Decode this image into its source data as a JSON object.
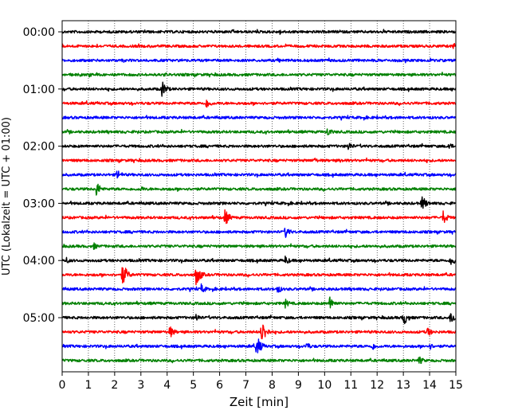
{
  "chart_data": {
    "type": "line",
    "subtype": "helicorder",
    "xlabel": "Zeit  [min]",
    "ylabel": "UTC (Lokalzeit = UTC + 01:00)",
    "xlim": [
      0,
      15
    ],
    "x_ticks": [
      "0",
      "1",
      "2",
      "3",
      "4",
      "5",
      "6",
      "7",
      "8",
      "9",
      "10",
      "11",
      "12",
      "13",
      "14",
      "15"
    ],
    "y_ticks": [
      "00:00",
      "01:00",
      "02:00",
      "03:00",
      "04:00",
      "05:00"
    ],
    "grid": "vertical dotted lines at each minute",
    "trace_interval_minutes": 15,
    "trace_colors": [
      "#000000",
      "#ff0000",
      "#0000ff",
      "#008000"
    ],
    "traces": [
      {
        "start": "00:00",
        "color": "#000000",
        "events": [
          {
            "t": 8.3,
            "amp": 0.3
          }
        ]
      },
      {
        "start": "00:15",
        "color": "#ff0000",
        "events": [
          {
            "t": 14.9,
            "amp": 0.4
          }
        ]
      },
      {
        "start": "00:30",
        "color": "#0000ff",
        "events": [
          {
            "t": 8.2,
            "amp": 0.35
          }
        ]
      },
      {
        "start": "00:45",
        "color": "#008000",
        "events": [
          {
            "t": 1.0,
            "amp": 0.3
          },
          {
            "t": 3.9,
            "amp": 0.3
          }
        ]
      },
      {
        "start": "01:00",
        "color": "#000000",
        "events": [
          {
            "t": 3.8,
            "amp": 0.9
          }
        ]
      },
      {
        "start": "01:15",
        "color": "#ff0000",
        "events": [
          {
            "t": 5.5,
            "amp": 0.6
          }
        ]
      },
      {
        "start": "01:30",
        "color": "#0000ff",
        "events": []
      },
      {
        "start": "01:45",
        "color": "#008000",
        "events": [
          {
            "t": 10.1,
            "amp": 0.55
          }
        ]
      },
      {
        "start": "02:00",
        "color": "#000000",
        "events": [
          {
            "t": 10.9,
            "amp": 0.55
          },
          {
            "t": 14.7,
            "amp": 0.5
          }
        ]
      },
      {
        "start": "02:15",
        "color": "#ff0000",
        "events": [
          {
            "t": 9.6,
            "amp": 0.35
          },
          {
            "t": 10.6,
            "amp": 0.3
          }
        ]
      },
      {
        "start": "02:30",
        "color": "#0000ff",
        "events": [
          {
            "t": 2.1,
            "amp": 0.6
          }
        ]
      },
      {
        "start": "02:45",
        "color": "#008000",
        "events": [
          {
            "t": 1.3,
            "amp": 0.8
          },
          {
            "t": 3.0,
            "amp": 0.35
          }
        ]
      },
      {
        "start": "03:00",
        "color": "#000000",
        "events": [
          {
            "t": 13.7,
            "amp": 0.9
          }
        ]
      },
      {
        "start": "03:15",
        "color": "#ff0000",
        "events": [
          {
            "t": 6.2,
            "amp": 0.9
          },
          {
            "t": 14.5,
            "amp": 0.8
          }
        ]
      },
      {
        "start": "03:30",
        "color": "#0000ff",
        "events": [
          {
            "t": 8.5,
            "amp": 0.7
          }
        ]
      },
      {
        "start": "03:45",
        "color": "#008000",
        "events": [
          {
            "t": 1.2,
            "amp": 0.4
          }
        ]
      },
      {
        "start": "04:00",
        "color": "#000000",
        "events": [
          {
            "t": 8.5,
            "amp": 0.55
          },
          {
            "t": 14.8,
            "amp": 0.7
          },
          {
            "t": 0.15,
            "amp": 0.4
          }
        ]
      },
      {
        "start": "04:15",
        "color": "#ff0000",
        "events": [
          {
            "t": 2.3,
            "amp": 1.3
          },
          {
            "t": 5.1,
            "amp": 1.2
          }
        ]
      },
      {
        "start": "04:30",
        "color": "#0000ff",
        "events": [
          {
            "t": 5.3,
            "amp": 0.55
          },
          {
            "t": 8.2,
            "amp": 0.5
          }
        ]
      },
      {
        "start": "04:45",
        "color": "#008000",
        "events": [
          {
            "t": 8.5,
            "amp": 0.5
          },
          {
            "t": 10.2,
            "amp": 0.8
          }
        ]
      },
      {
        "start": "05:00",
        "color": "#000000",
        "events": [
          {
            "t": 5.1,
            "amp": 0.5
          },
          {
            "t": 13.0,
            "amp": 0.9
          },
          {
            "t": 14.8,
            "amp": 0.8
          }
        ]
      },
      {
        "start": "05:15",
        "color": "#ff0000",
        "events": [
          {
            "t": 7.6,
            "amp": 1.3
          },
          {
            "t": 4.1,
            "amp": 0.7
          },
          {
            "t": 13.9,
            "amp": 0.6
          }
        ]
      },
      {
        "start": "05:30",
        "color": "#0000ff",
        "events": [
          {
            "t": 7.4,
            "amp": 1.2
          },
          {
            "t": 9.3,
            "amp": 0.5
          },
          {
            "t": 11.8,
            "amp": 0.5
          },
          {
            "t": 14.0,
            "amp": 0.4
          }
        ]
      },
      {
        "start": "05:45",
        "color": "#008000",
        "events": [
          {
            "t": 13.6,
            "amp": 0.5
          }
        ]
      }
    ]
  }
}
